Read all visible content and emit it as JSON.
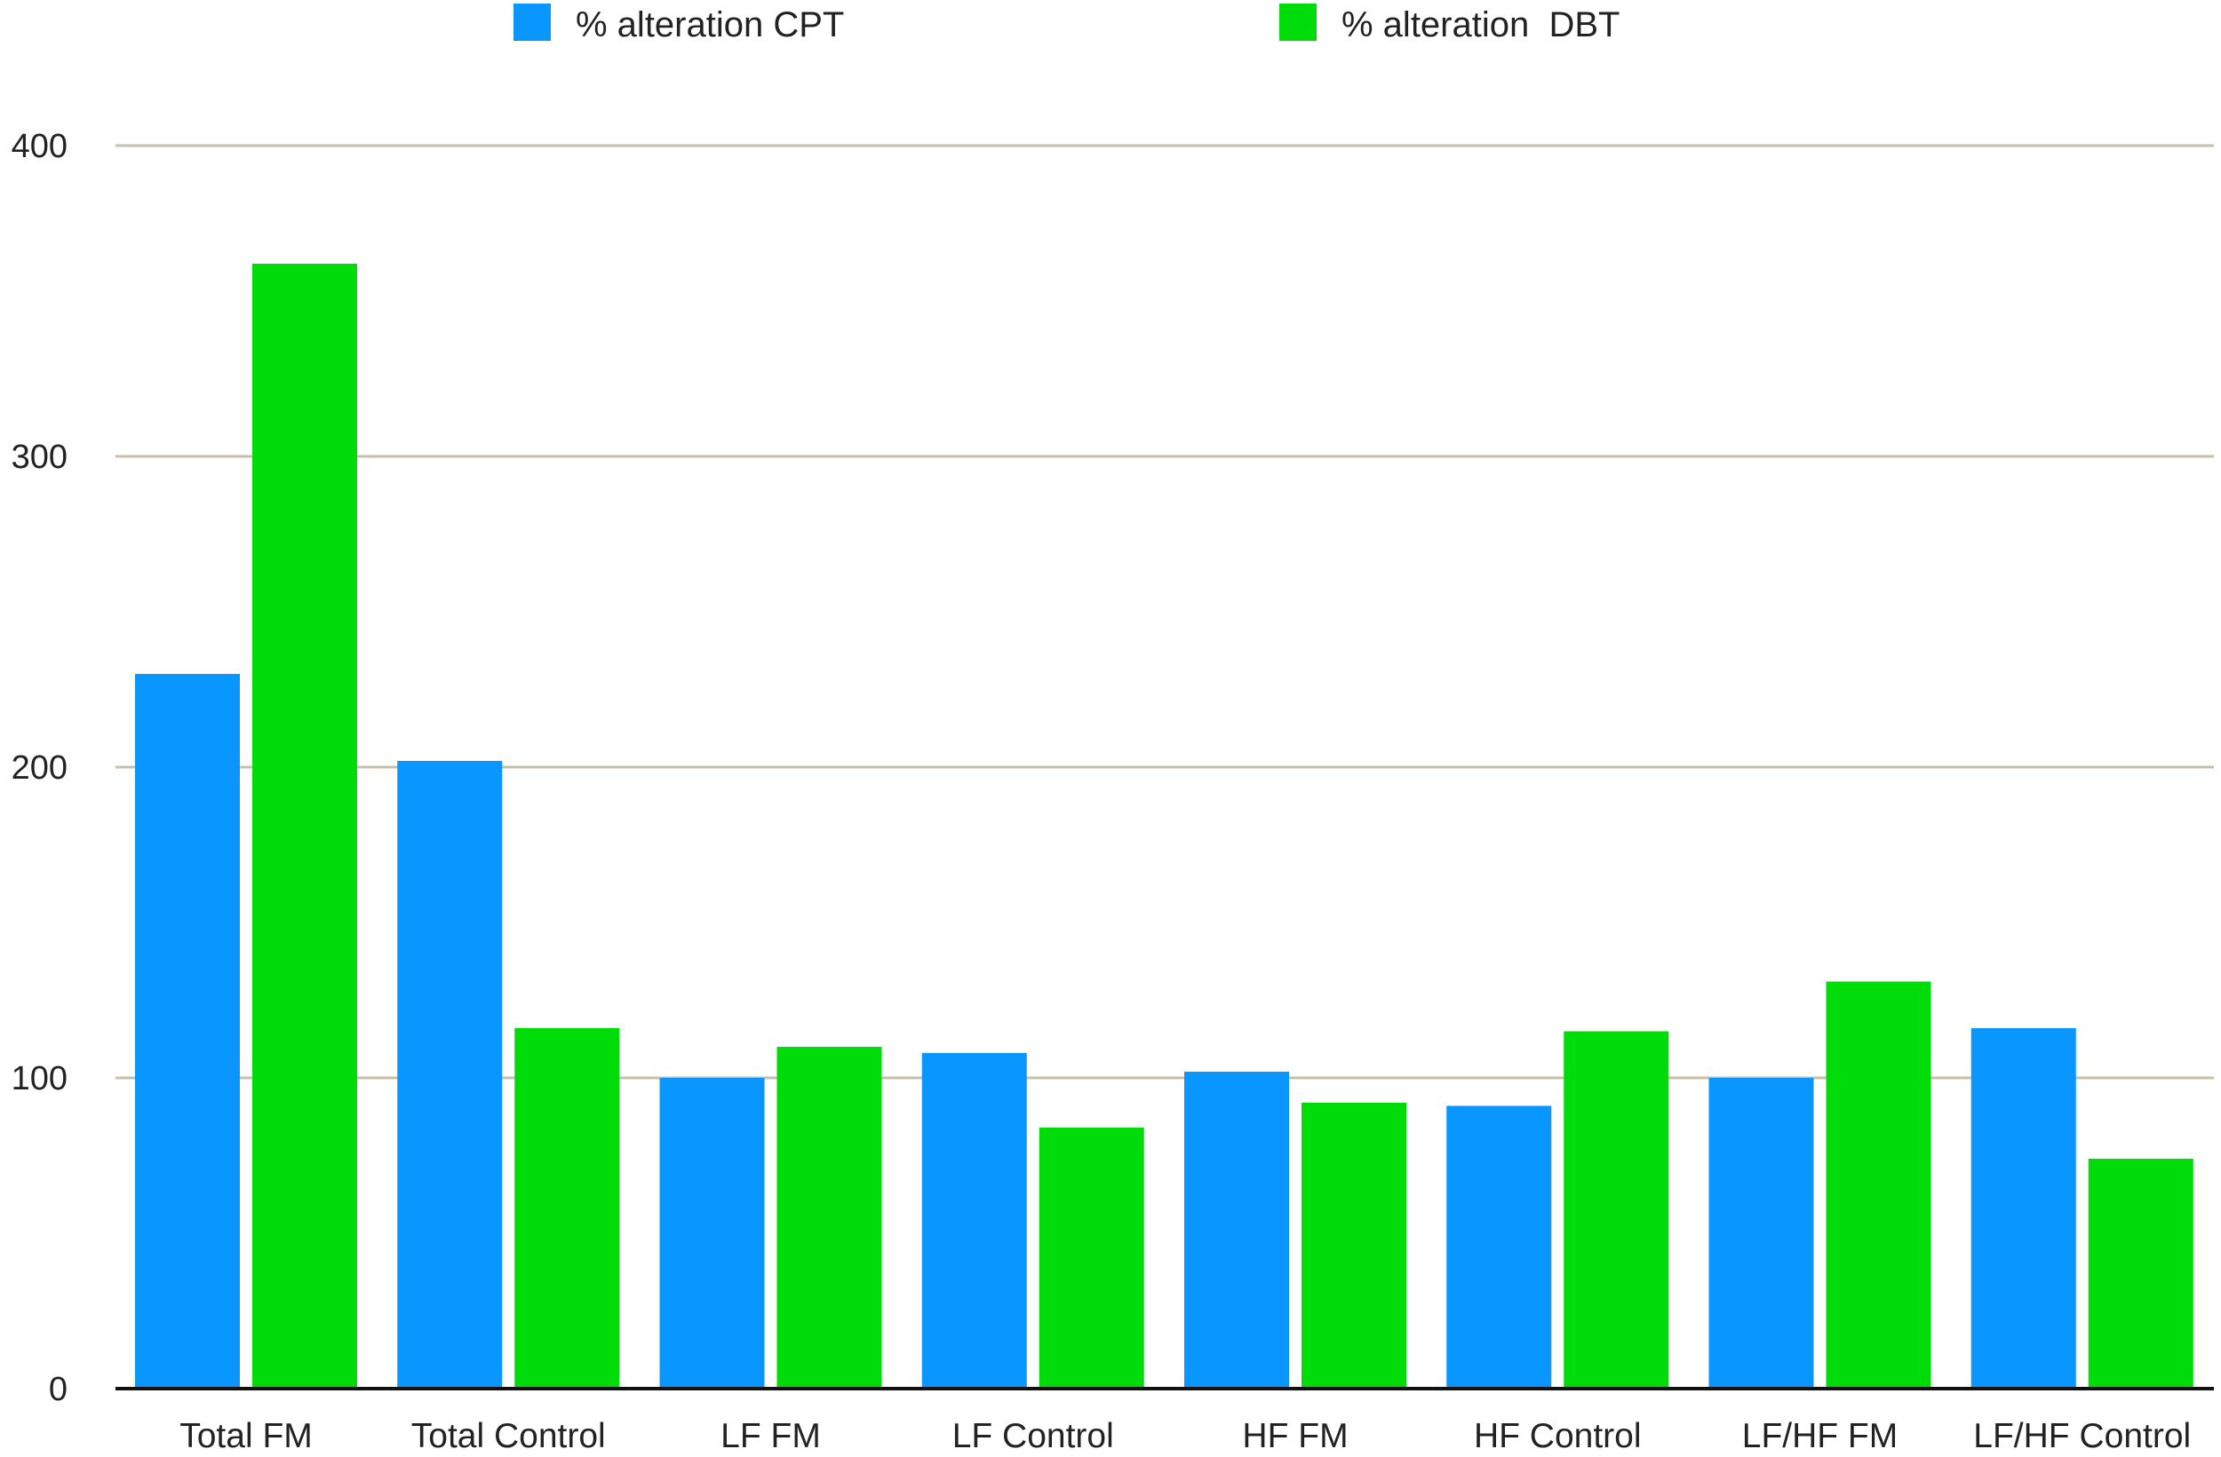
{
  "chart_data": {
    "type": "bar",
    "title": "",
    "xlabel": "",
    "ylabel": "",
    "ylim": [
      0,
      400
    ],
    "yticks": [
      "0",
      "100",
      "200",
      "300",
      "400"
    ],
    "grid": true,
    "legend_position": "top",
    "categories": [
      "Total FM",
      "Total Control",
      "LF FM",
      "LF Control",
      "HF FM",
      "HF Control",
      "LF/HF FM",
      "LF/HF Control"
    ],
    "series": [
      {
        "name": "% alteration CPT",
        "color": "#0A96FF",
        "values": [
          230,
          202,
          100,
          108,
          102,
          91,
          100,
          116
        ]
      },
      {
        "name": "% alteration  DBT",
        "color": "#00DC0A",
        "values": [
          362,
          116,
          110,
          84,
          92,
          115,
          131,
          74
        ]
      }
    ],
    "colors": {
      "gridline": "#C8BFA8",
      "axis": "#111111",
      "text": "#222222"
    }
  }
}
